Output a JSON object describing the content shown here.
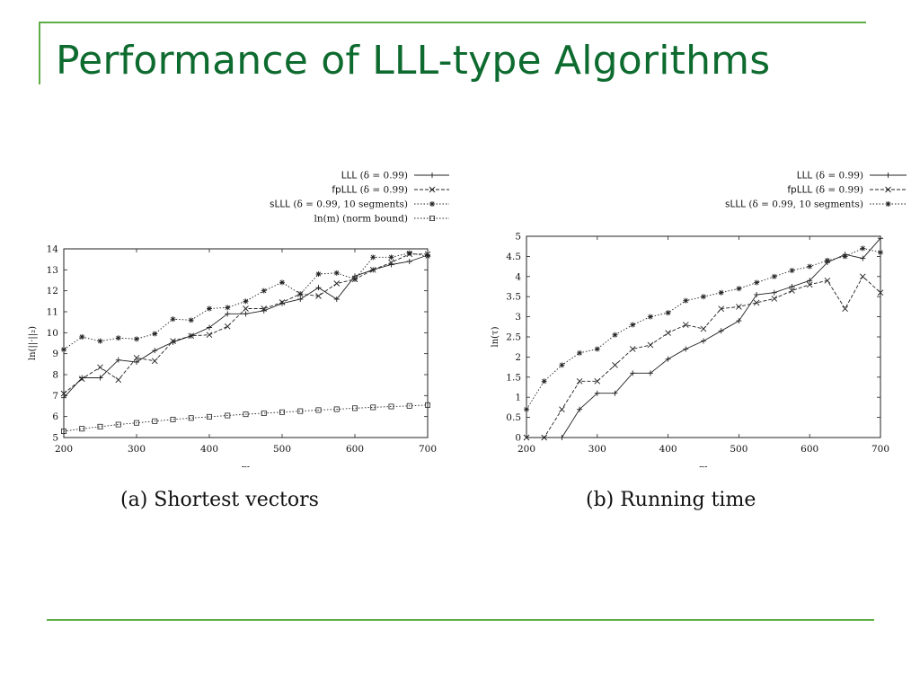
{
  "slide": {
    "title": "Performance of LLL-type Algorithms"
  },
  "chart_data": [
    {
      "type": "line",
      "caption": "(a) Shortest vectors",
      "xlabel": "m",
      "ylabel": "ln(||·||₂)",
      "xlim": [
        200,
        700
      ],
      "ylim": [
        5,
        14
      ],
      "xticks": [
        200,
        300,
        400,
        500,
        600,
        700
      ],
      "yticks": [
        5,
        6,
        7,
        8,
        9,
        10,
        11,
        12,
        13,
        14
      ],
      "grid": false,
      "legend_position": "top-right",
      "x": [
        200,
        225,
        250,
        275,
        300,
        325,
        350,
        375,
        400,
        425,
        450,
        475,
        500,
        525,
        550,
        575,
        600,
        625,
        650,
        675,
        700
      ],
      "series": [
        {
          "name": "LLL (δ = 0.99)",
          "marker": "plus",
          "dash": "solid",
          "values": [
            6.9,
            7.85,
            7.85,
            8.7,
            8.6,
            9.15,
            9.55,
            9.85,
            10.25,
            10.9,
            10.9,
            11.05,
            11.4,
            11.6,
            12.15,
            11.6,
            12.7,
            13.0,
            13.25,
            13.4,
            13.7
          ]
        },
        {
          "name": "fpLLL (δ = 0.99)",
          "marker": "x",
          "dash": "dashed",
          "values": [
            7.1,
            7.8,
            8.35,
            7.75,
            8.8,
            8.65,
            9.6,
            9.85,
            9.9,
            10.3,
            11.15,
            11.15,
            11.45,
            11.85,
            11.75,
            12.35,
            12.55,
            13.0,
            13.35,
            13.75,
            13.75
          ]
        },
        {
          "name": "sLLL (δ = 0.99, 10 segments)",
          "marker": "star",
          "dash": "dotted",
          "values": [
            9.2,
            9.8,
            9.6,
            9.75,
            9.7,
            9.95,
            10.65,
            10.6,
            11.15,
            11.2,
            11.5,
            12.0,
            12.4,
            11.85,
            12.8,
            12.85,
            12.55,
            13.6,
            13.6,
            13.8,
            13.65
          ]
        },
        {
          "name": "ln(m) (norm bound)",
          "marker": "square",
          "dash": "dotted",
          "values": [
            5.3,
            5.42,
            5.52,
            5.62,
            5.7,
            5.78,
            5.86,
            5.93,
            5.99,
            6.05,
            6.11,
            6.16,
            6.21,
            6.26,
            6.31,
            6.35,
            6.4,
            6.44,
            6.48,
            6.51,
            6.55
          ]
        }
      ]
    },
    {
      "type": "line",
      "caption": "(b) Running time",
      "xlabel": "m",
      "ylabel": "ln(τ)",
      "xlim": [
        200,
        700
      ],
      "ylim": [
        0,
        5
      ],
      "xticks": [
        200,
        300,
        400,
        500,
        600,
        700
      ],
      "yticks": [
        0,
        0.5,
        1,
        1.5,
        2,
        2.5,
        3,
        3.5,
        4,
        4.5,
        5
      ],
      "grid": false,
      "legend_position": "top-right",
      "x": [
        200,
        225,
        250,
        275,
        300,
        325,
        350,
        375,
        400,
        425,
        450,
        475,
        500,
        525,
        550,
        575,
        600,
        625,
        650,
        675,
        700
      ],
      "series": [
        {
          "name": "LLL (δ = 0.99)",
          "marker": "plus",
          "dash": "solid",
          "values": [
            null,
            null,
            0.0,
            0.7,
            1.1,
            1.1,
            1.6,
            1.6,
            1.95,
            2.2,
            2.4,
            2.65,
            2.9,
            3.55,
            3.6,
            3.75,
            3.9,
            4.35,
            4.55,
            4.45,
            4.95
          ]
        },
        {
          "name": "fpLLL (δ = 0.99)",
          "marker": "x",
          "dash": "dashed",
          "values": [
            0.0,
            0.0,
            0.7,
            1.4,
            1.4,
            1.8,
            2.2,
            2.3,
            2.6,
            2.8,
            2.7,
            3.2,
            3.25,
            3.35,
            3.45,
            3.65,
            3.8,
            3.9,
            3.2,
            4.0,
            3.6
          ]
        },
        {
          "name": "sLLL (δ = 0.99, 10 segments)",
          "marker": "star",
          "dash": "dotted",
          "values": [
            0.7,
            1.4,
            1.8,
            2.1,
            2.2,
            2.55,
            2.8,
            3.0,
            3.1,
            3.4,
            3.5,
            3.6,
            3.7,
            3.85,
            4.0,
            4.15,
            4.25,
            4.4,
            4.5,
            4.7,
            4.6
          ]
        }
      ]
    }
  ]
}
